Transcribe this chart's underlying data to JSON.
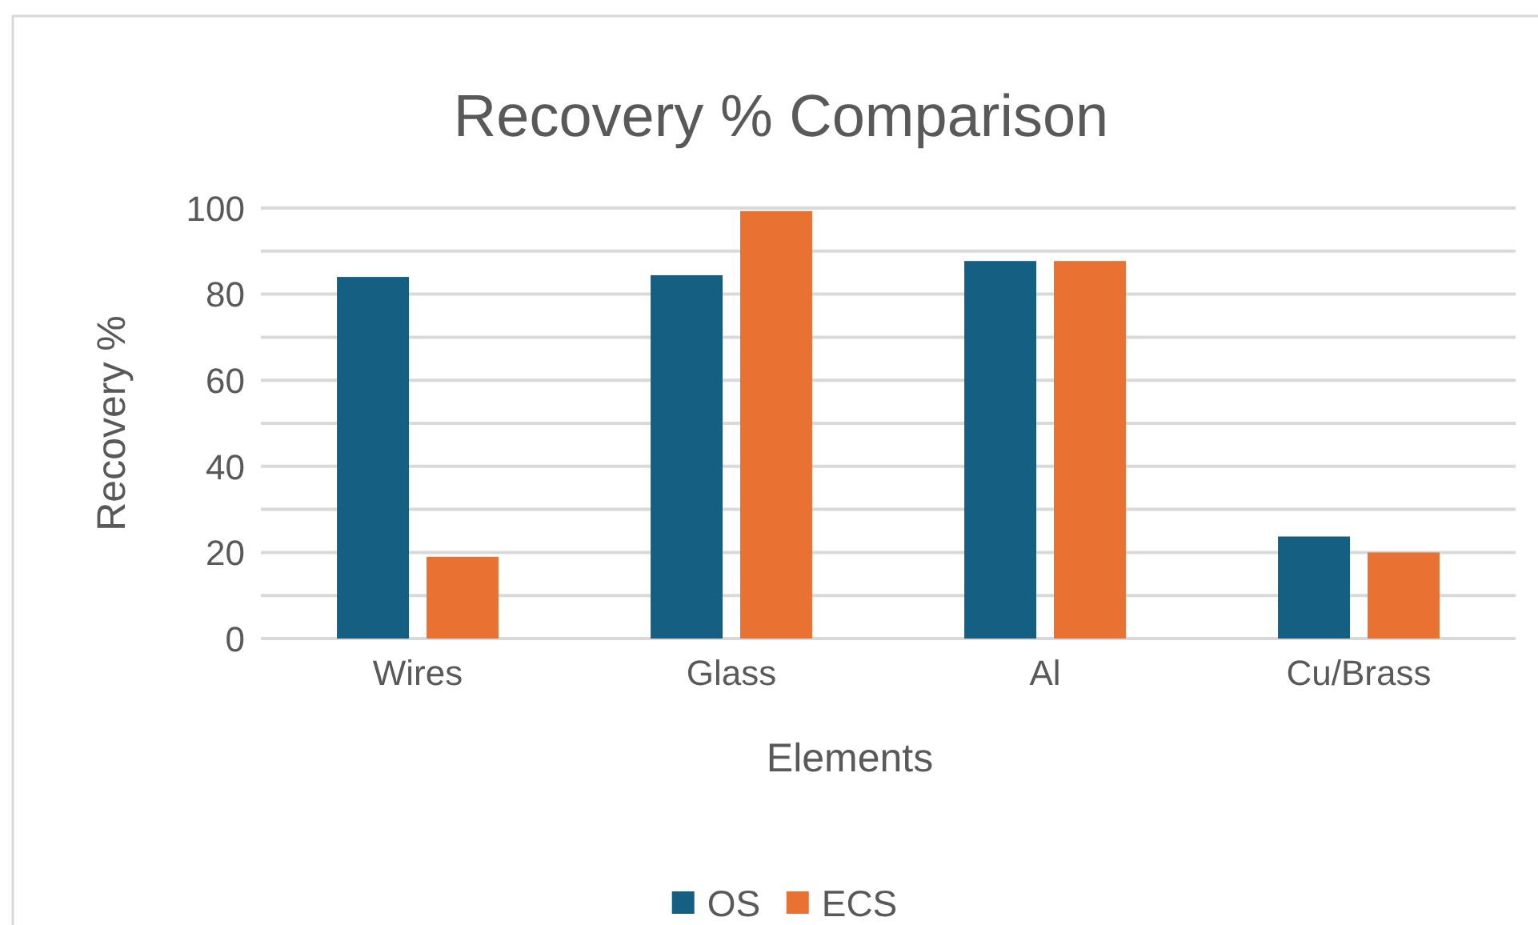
{
  "chart_data": {
    "type": "bar",
    "title": "Recovery % Comparison",
    "xlabel": "Elements",
    "ylabel": "Recovery %",
    "categories": [
      "Wires",
      "Glass",
      "Al",
      "Cu/Brass"
    ],
    "series": [
      {
        "name": "OS",
        "color": "#156082",
        "values": [
          84,
          84.4,
          87.7,
          23.7
        ]
      },
      {
        "name": "ECS",
        "color": "#e97132",
        "values": [
          19,
          99.3,
          87.7,
          20
        ]
      }
    ],
    "ylim": [
      0,
      100
    ],
    "yticks": [
      0,
      {
        "value": 10,
        "label": null
      },
      20,
      {
        "value": 30,
        "label": null
      },
      40,
      {
        "value": 50,
        "label": null
      },
      60,
      {
        "value": 70,
        "label": null
      },
      80,
      {
        "value": 90,
        "label": null
      },
      100
    ],
    "grid": "y",
    "legend": "bottom"
  }
}
